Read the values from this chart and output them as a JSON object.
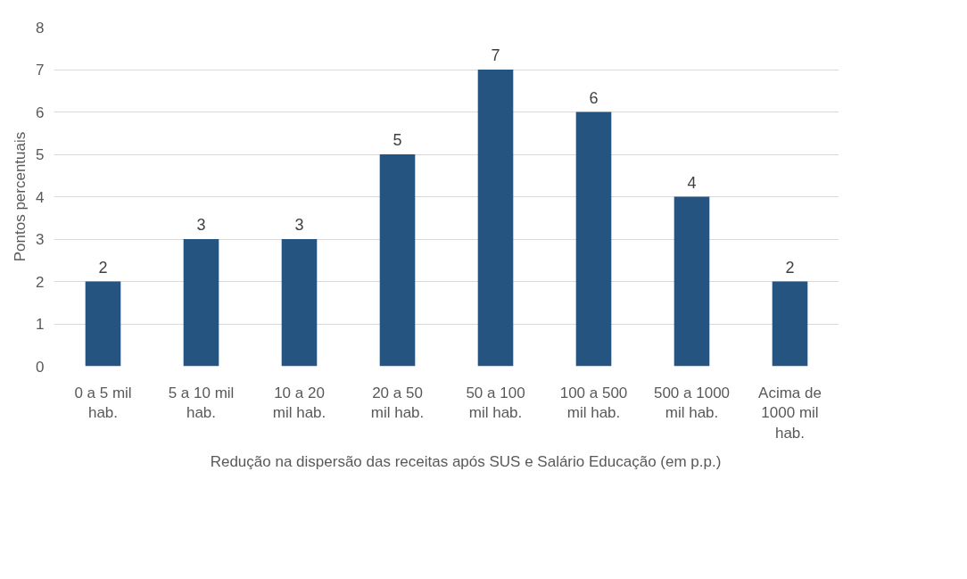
{
  "chart_data": {
    "type": "bar",
    "ylabel": "Pontos percentuais",
    "categories": [
      "0 a 5 mil hab.",
      "5 a 10 mil hab.",
      "10 a 20 mil hab.",
      "20 a 50 mil hab.",
      "50 a 100 mil hab.",
      "100 a 500 mil hab.",
      "500 a 1000 mil hab.",
      "Acima de 1000 mil hab."
    ],
    "series": [
      {
        "name": "Redução na dispersão das receitas após SUS e Salário Educação (em p.p.)",
        "color": "#255480",
        "values": [
          2,
          3,
          3,
          5,
          7,
          6,
          4,
          2
        ]
      }
    ],
    "ylim": [
      0,
      8
    ],
    "yticks": [
      0,
      1,
      2,
      3,
      4,
      5,
      6,
      7,
      8
    ],
    "grid": "y",
    "legend": "bottom",
    "data_labels": true
  }
}
